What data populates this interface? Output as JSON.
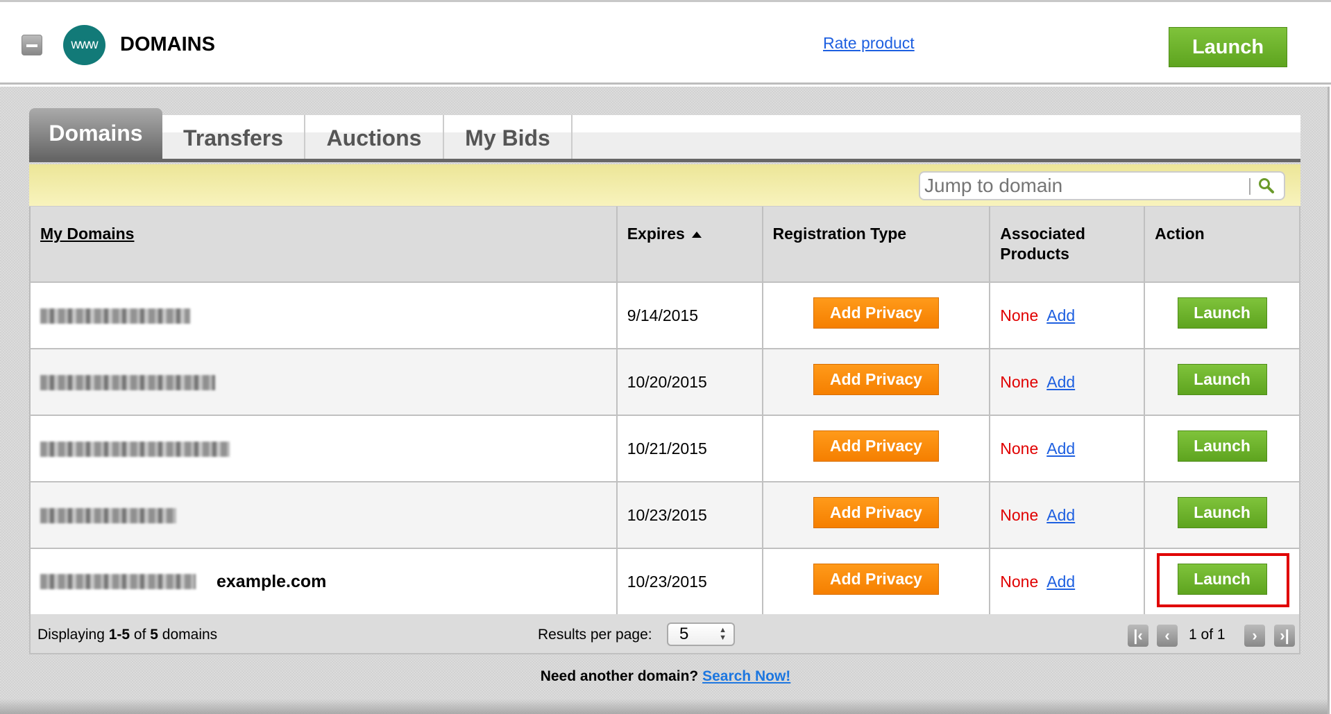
{
  "header": {
    "title": "DOMAINS",
    "logo_text": "www",
    "rate_link": "Rate product",
    "launch_label": "Launch"
  },
  "tabs": [
    {
      "label": "Domains",
      "active": true
    },
    {
      "label": "Transfers"
    },
    {
      "label": "Auctions"
    },
    {
      "label": "My Bids"
    }
  ],
  "search": {
    "placeholder": "Jump to domain",
    "icon": "magnifier-icon"
  },
  "table": {
    "columns": [
      "My Domains",
      "Expires",
      "Registration Type",
      "Associated Products",
      "Action"
    ],
    "sort": {
      "column": "Expires",
      "direction": "ascending"
    },
    "rows": [
      {
        "domain_note": "",
        "expires": "9/14/2015",
        "registration": "Add Privacy",
        "products": "None",
        "add": "Add",
        "action": "Launch"
      },
      {
        "domain_note": "",
        "expires": "10/20/2015",
        "registration": "Add Privacy",
        "products": "None",
        "add": "Add",
        "action": "Launch"
      },
      {
        "domain_note": "",
        "expires": "10/21/2015",
        "registration": "Add Privacy",
        "products": "None",
        "add": "Add",
        "action": "Launch"
      },
      {
        "domain_note": "",
        "expires": "10/23/2015",
        "registration": "Add Privacy",
        "products": "None",
        "add": "Add",
        "action": "Launch"
      },
      {
        "domain_note": "example.com",
        "expires": "10/23/2015",
        "registration": "Add Privacy",
        "products": "None",
        "add": "Add",
        "action": "Launch",
        "highlighted": true
      }
    ]
  },
  "footer": {
    "displaying_prefix": "Displaying ",
    "range": "1-5",
    "of": " of ",
    "total": "5",
    "suffix": " domains",
    "results_label": "Results per page:",
    "results_value": "5",
    "page_text": "1 of 1"
  },
  "bottom": {
    "question": "Need another domain?",
    "link": "Search Now!"
  },
  "colors": {
    "accent_green": "#6ab42a",
    "privacy_orange": "#f78a0b",
    "none_red": "#e00000",
    "link_blue": "#1d5fe0",
    "highlight_red": "#e00000"
  }
}
